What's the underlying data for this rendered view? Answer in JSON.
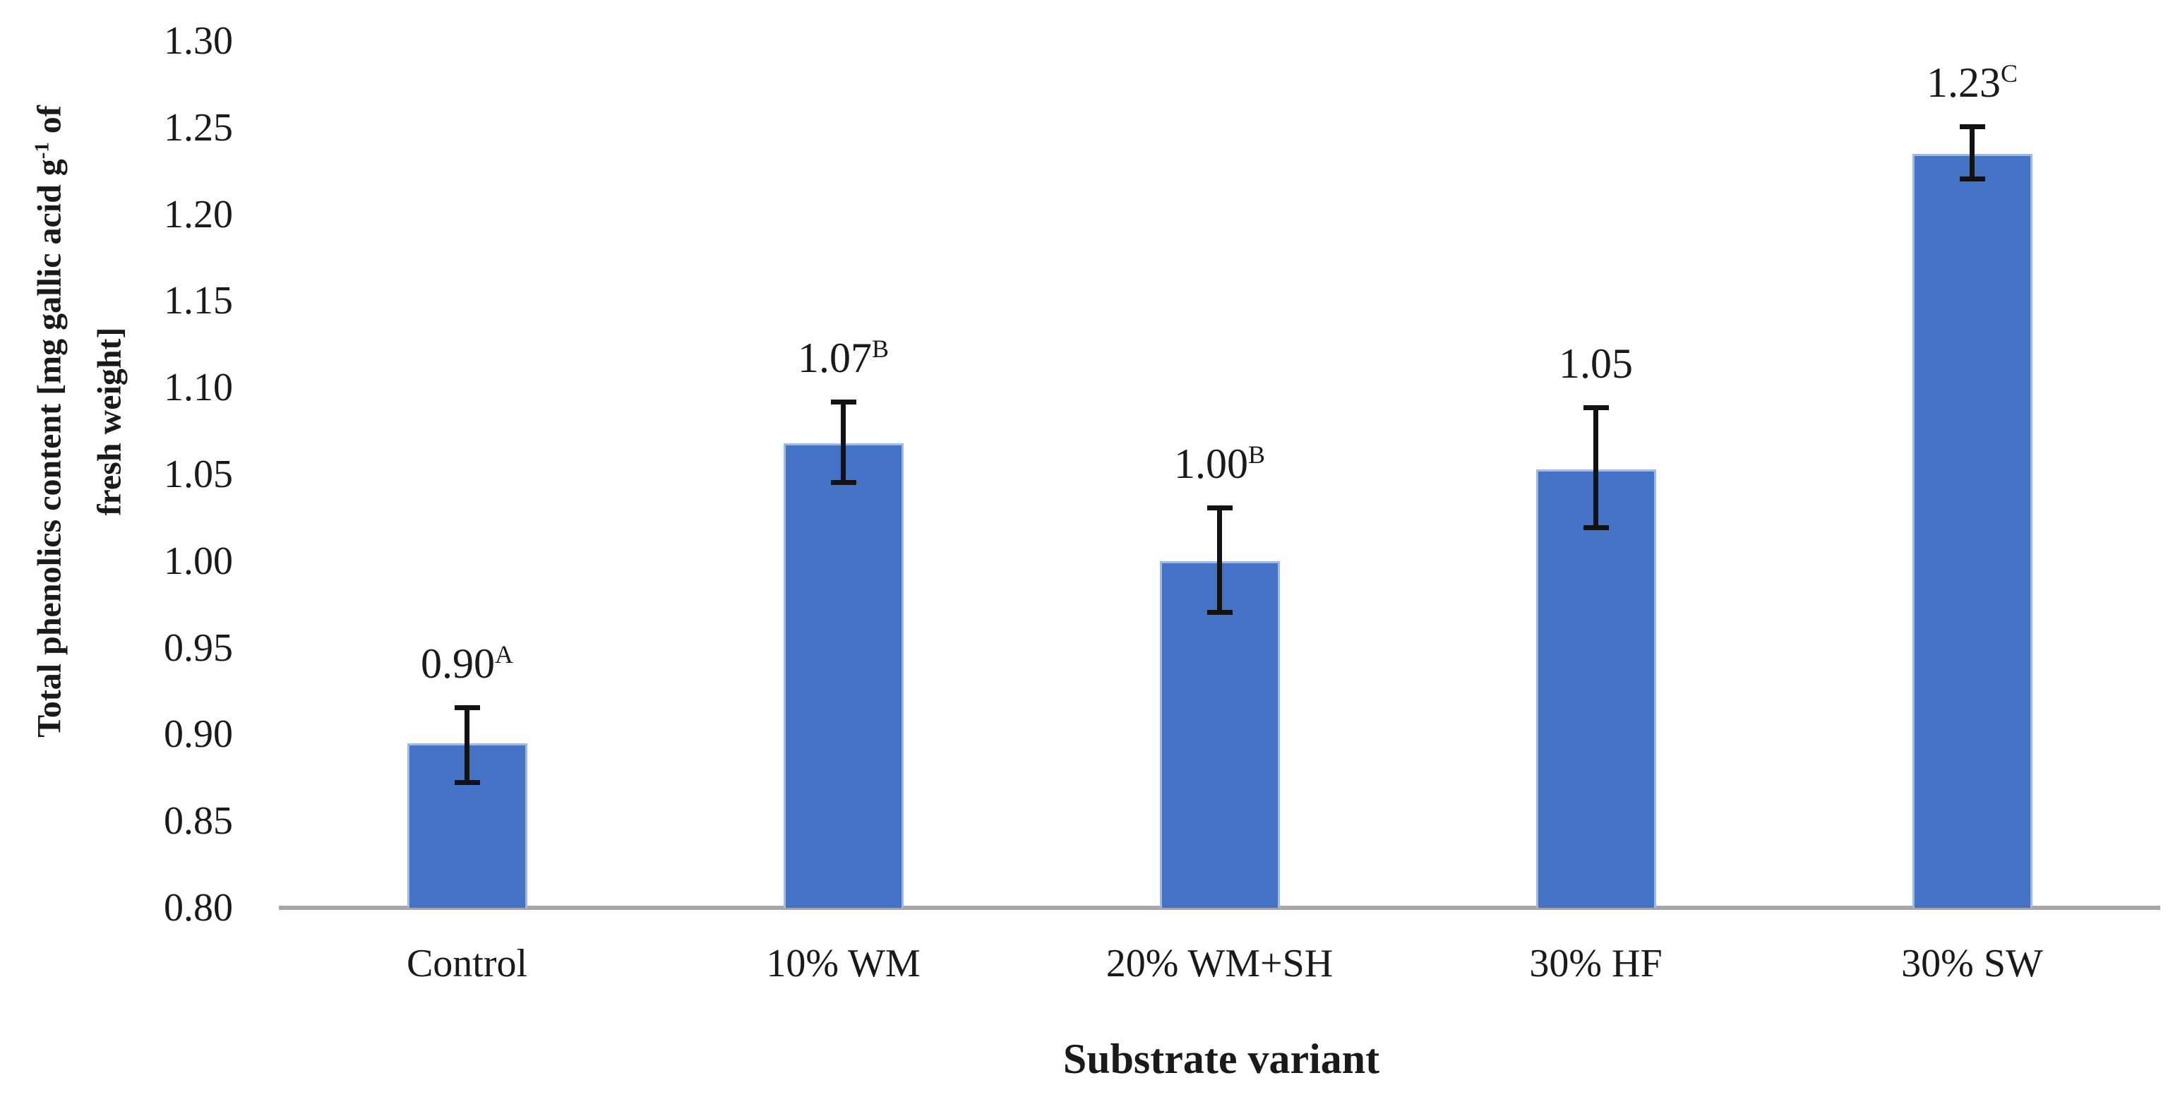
{
  "chart_data": {
    "type": "bar",
    "title": "",
    "xlabel": "Substrate variant",
    "ylabel": "Total phenolics content [mg gallic acid g⁻¹ of fresh weight]",
    "ylabel_lines": [
      {
        "pre": "Total phenolics content [mg gallic acid g",
        "sup": "-1",
        "post": " of"
      },
      {
        "pre": "fresh weight]",
        "sup": "",
        "post": ""
      }
    ],
    "categories": [
      "Control",
      "10% WM",
      "20% WM+SH",
      "30% HF",
      "30% SW"
    ],
    "values": [
      0.895,
      1.068,
      1.0,
      1.053,
      1.235
    ],
    "bar_labels": [
      {
        "text": "0.90",
        "sup": "A"
      },
      {
        "text": "1.07",
        "sup": "B"
      },
      {
        "text": "1.00",
        "sup": "B"
      },
      {
        "text": "1.05",
        "sup": ""
      },
      {
        "text": "1.23",
        "sup": "C"
      }
    ],
    "error_bars": [
      {
        "low": 0.873,
        "high": 0.915
      },
      {
        "low": 1.046,
        "high": 1.091
      },
      {
        "low": 0.971,
        "high": 1.03
      },
      {
        "low": 1.02,
        "high": 1.088
      },
      {
        "low": 1.221,
        "high": 1.25
      }
    ],
    "ylim": [
      0.8,
      1.3
    ],
    "ytick_step": 0.05,
    "yticks": [
      "0.80",
      "0.85",
      "0.90",
      "0.95",
      "1.00",
      "1.05",
      "1.10",
      "1.15",
      "1.20",
      "1.25",
      "1.30"
    ],
    "grid": false,
    "legend": false,
    "colors": {
      "bar_fill": "#4472C4",
      "bar_border": "#9DB9E4",
      "error_bar": "#121212",
      "axis_line": "#A6A6A6",
      "text": "#1A1A1A"
    }
  }
}
